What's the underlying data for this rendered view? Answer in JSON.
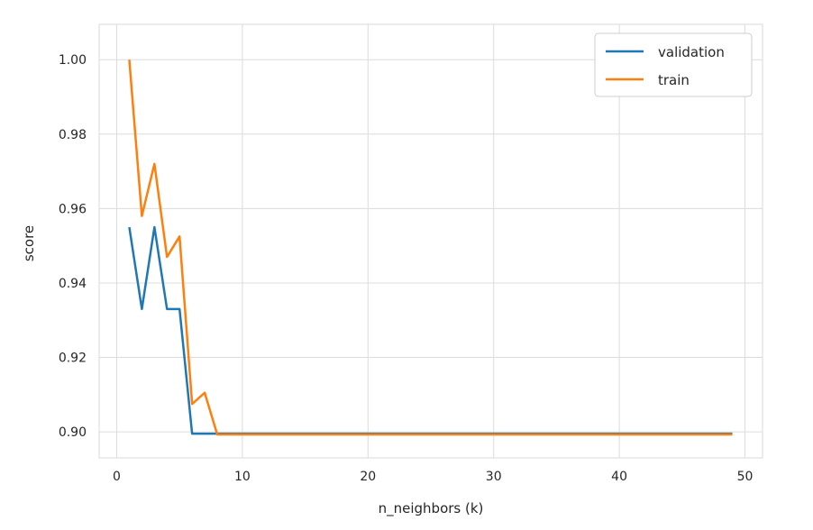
{
  "chart_data": {
    "type": "line",
    "xlabel": "n_neighbors (k)",
    "ylabel": "score",
    "xlim": [
      -1.4,
      51.4
    ],
    "ylim": [
      0.893,
      1.0095
    ],
    "xticks": [
      0,
      10,
      20,
      30,
      40,
      50
    ],
    "yticks": [
      0.9,
      0.92,
      0.94,
      0.96,
      0.98,
      1.0
    ],
    "xtick_labels": [
      "0",
      "10",
      "20",
      "30",
      "40",
      "50"
    ],
    "ytick_labels": [
      "0.90",
      "0.92",
      "0.94",
      "0.96",
      "0.98",
      "1.00"
    ],
    "grid": true,
    "legend_position": "top-right",
    "x": [
      1,
      2,
      3,
      4,
      5,
      6,
      7,
      8,
      9,
      10,
      11,
      12,
      13,
      14,
      15,
      16,
      17,
      18,
      19,
      20,
      21,
      22,
      23,
      24,
      25,
      26,
      27,
      28,
      29,
      30,
      31,
      32,
      33,
      34,
      35,
      36,
      37,
      38,
      39,
      40,
      41,
      42,
      43,
      44,
      45,
      46,
      47,
      48,
      49
    ],
    "series": [
      {
        "name": "validation",
        "color": "#1f77b4",
        "values": [
          0.955,
          0.933,
          0.955,
          0.933,
          0.933,
          0.8995,
          0.8995,
          0.8995,
          0.8995,
          0.8995,
          0.8995,
          0.8995,
          0.8995,
          0.8995,
          0.8995,
          0.8995,
          0.8995,
          0.8995,
          0.8995,
          0.8995,
          0.8995,
          0.8995,
          0.8995,
          0.8995,
          0.8995,
          0.8995,
          0.8995,
          0.8995,
          0.8995,
          0.8995,
          0.8995,
          0.8995,
          0.8995,
          0.8995,
          0.8995,
          0.8995,
          0.8995,
          0.8995,
          0.8995,
          0.8995,
          0.8995,
          0.8995,
          0.8995,
          0.8995,
          0.8995,
          0.8995,
          0.8995,
          0.8995,
          0.8995
        ]
      },
      {
        "name": "train",
        "color": "#ff7f0e",
        "values": [
          1.0,
          0.958,
          0.972,
          0.947,
          0.9525,
          0.9075,
          0.9105,
          0.8993,
          0.8993,
          0.8993,
          0.8993,
          0.8993,
          0.8993,
          0.8993,
          0.8993,
          0.8993,
          0.8993,
          0.8993,
          0.8993,
          0.8993,
          0.8993,
          0.8993,
          0.8993,
          0.8993,
          0.8993,
          0.8993,
          0.8993,
          0.8993,
          0.8993,
          0.8993,
          0.8993,
          0.8993,
          0.8993,
          0.8993,
          0.8993,
          0.8993,
          0.8993,
          0.8993,
          0.8993,
          0.8993,
          0.8993,
          0.8993,
          0.8993,
          0.8993,
          0.8993,
          0.8993,
          0.8993,
          0.8993,
          0.8993
        ]
      }
    ]
  }
}
